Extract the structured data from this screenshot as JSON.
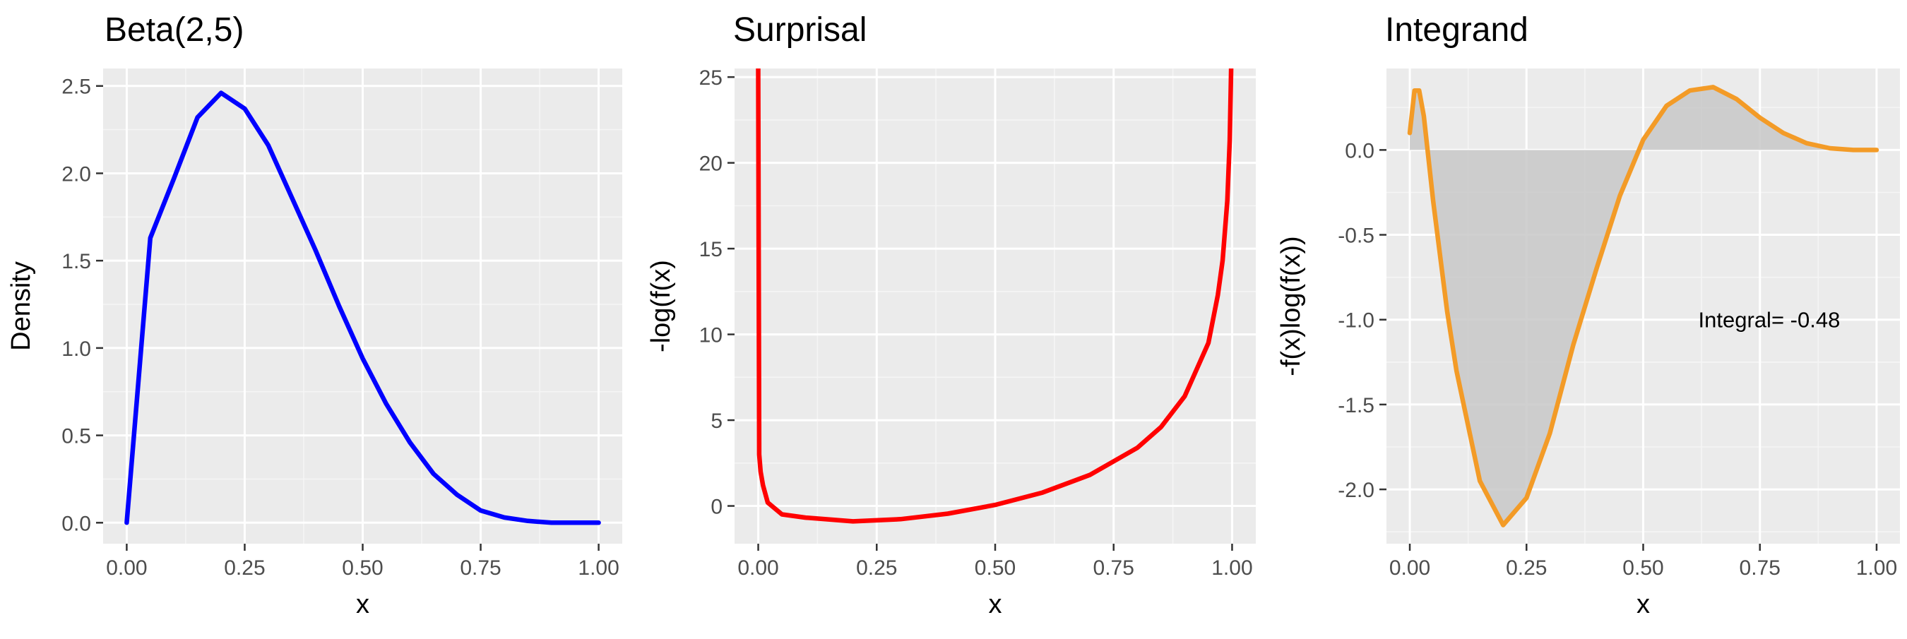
{
  "chart_data": [
    {
      "type": "line",
      "title": "Beta(2,5)",
      "xlabel": "x",
      "ylabel": "Density",
      "xlim": [
        0,
        1
      ],
      "ylim": [
        -0.12,
        2.6
      ],
      "x_ticks": [
        0,
        0.25,
        0.5,
        0.75,
        1
      ],
      "x_tick_labels": [
        "0.00",
        "0.25",
        "0.50",
        "0.75",
        "1.00"
      ],
      "y_ticks": [
        0,
        0.5,
        1,
        1.5,
        2,
        2.5
      ],
      "y_tick_labels": [
        "0.0",
        "0.5",
        "1.0",
        "1.5",
        "2.0",
        "2.5"
      ],
      "grid": true,
      "series": [
        {
          "color": "#0000ff",
          "x": [
            0.0,
            0.05,
            0.1,
            0.15,
            0.2,
            0.25,
            0.3,
            0.35,
            0.4,
            0.45,
            0.5,
            0.55,
            0.6,
            0.65,
            0.7,
            0.75,
            0.8,
            0.85,
            0.9,
            0.95,
            1.0
          ],
          "y": [
            0.0,
            1.63,
            1.97,
            2.32,
            2.46,
            2.37,
            2.16,
            1.86,
            1.56,
            1.24,
            0.94,
            0.68,
            0.46,
            0.28,
            0.16,
            0.07,
            0.03,
            0.01,
            0.0,
            0.0,
            0.0
          ]
        }
      ]
    },
    {
      "type": "line",
      "title": "Surprisal",
      "xlabel": "x",
      "ylabel": "-log(f(x)",
      "xlim": [
        0,
        1
      ],
      "ylim": [
        -2.2,
        25.5
      ],
      "x_ticks": [
        0,
        0.25,
        0.5,
        0.75,
        1
      ],
      "x_tick_labels": [
        "0.00",
        "0.25",
        "0.50",
        "0.75",
        "1.00"
      ],
      "y_ticks": [
        0,
        5,
        10,
        15,
        20,
        25
      ],
      "y_tick_labels": [
        "0",
        "5",
        "10",
        "15",
        "20",
        "25"
      ],
      "grid": true,
      "series": [
        {
          "color": "#ff0000",
          "x": [
            0.0,
            0.002,
            0.005,
            0.01,
            0.02,
            0.05,
            0.1,
            0.2,
            0.3,
            0.4,
            0.5,
            0.6,
            0.7,
            0.8,
            0.85,
            0.9,
            0.95,
            0.97,
            0.98,
            0.99,
            0.995,
            0.998
          ],
          "y": [
            25.5,
            3.0,
            2.0,
            1.2,
            0.2,
            -0.49,
            -0.68,
            -0.9,
            -0.77,
            -0.45,
            0.06,
            0.78,
            1.81,
            3.39,
            4.6,
            6.4,
            9.5,
            12.3,
            14.3,
            17.8,
            21.3,
            25.5
          ]
        }
      ]
    },
    {
      "type": "area",
      "title": "Integrand",
      "xlabel": "x",
      "ylabel": "-f(x)log(f(x))",
      "xlim": [
        0,
        1
      ],
      "ylim": [
        -2.32,
        0.48
      ],
      "x_ticks": [
        0,
        0.25,
        0.5,
        0.75,
        1
      ],
      "x_tick_labels": [
        "0.00",
        "0.25",
        "0.50",
        "0.75",
        "1.00"
      ],
      "y_ticks": [
        -2,
        -1.5,
        -1,
        -0.5,
        0
      ],
      "y_tick_labels": [
        "-2.0",
        "-1.5",
        "-1.0",
        "-0.5",
        "0.0"
      ],
      "grid": true,
      "annotation": "Integral= -0.48",
      "series": [
        {
          "color": "#f39b27",
          "fill": "#c8c8c8",
          "x": [
            0.0,
            0.01,
            0.02,
            0.03,
            0.05,
            0.08,
            0.1,
            0.15,
            0.2,
            0.25,
            0.3,
            0.35,
            0.4,
            0.45,
            0.5,
            0.55,
            0.6,
            0.65,
            0.7,
            0.75,
            0.8,
            0.85,
            0.9,
            0.95,
            1.0
          ],
          "y": [
            0.1,
            0.35,
            0.35,
            0.2,
            -0.3,
            -0.95,
            -1.3,
            -1.95,
            -2.21,
            -2.05,
            -1.67,
            -1.15,
            -0.7,
            -0.27,
            0.06,
            0.26,
            0.35,
            0.37,
            0.3,
            0.19,
            0.1,
            0.04,
            0.01,
            0.0,
            0.0
          ]
        }
      ]
    }
  ]
}
